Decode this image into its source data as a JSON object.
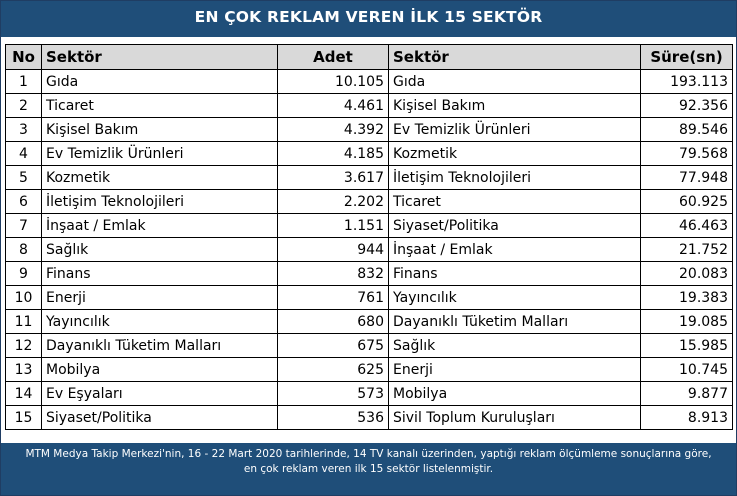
{
  "title": "EN ÇOK REKLAM VEREN İLK 15 SEKTÖR",
  "headers": {
    "no": "No",
    "sektor_left": "Sektör",
    "adet": "Adet",
    "sektor_right": "Sektör",
    "sure": "Süre(sn)"
  },
  "rows": [
    {
      "no": "1",
      "sektor_adet": "Gıda",
      "adet": "10.105",
      "sektor_sure": "Gıda",
      "sure": "193.113"
    },
    {
      "no": "2",
      "sektor_adet": "Ticaret",
      "adet": "4.461",
      "sektor_sure": "Kişisel Bakım",
      "sure": "92.356"
    },
    {
      "no": "3",
      "sektor_adet": "Kişisel Bakım",
      "adet": "4.392",
      "sektor_sure": "Ev Temizlik Ürünleri",
      "sure": "89.546"
    },
    {
      "no": "4",
      "sektor_adet": "Ev Temizlik Ürünleri",
      "adet": "4.185",
      "sektor_sure": "Kozmetik",
      "sure": "79.568"
    },
    {
      "no": "5",
      "sektor_adet": "Kozmetik",
      "adet": "3.617",
      "sektor_sure": "İletişim Teknolojileri",
      "sure": "77.948"
    },
    {
      "no": "6",
      "sektor_adet": "İletişim Teknolojileri",
      "adet": "2.202",
      "sektor_sure": "Ticaret",
      "sure": "60.925"
    },
    {
      "no": "7",
      "sektor_adet": "İnşaat / Emlak",
      "adet": "1.151",
      "sektor_sure": "Siyaset/Politika",
      "sure": "46.463"
    },
    {
      "no": "8",
      "sektor_adet": "Sağlık",
      "adet": "944",
      "sektor_sure": "İnşaat / Emlak",
      "sure": "21.752"
    },
    {
      "no": "9",
      "sektor_adet": "Finans",
      "adet": "832",
      "sektor_sure": "Finans",
      "sure": "20.083"
    },
    {
      "no": "10",
      "sektor_adet": "Enerji",
      "adet": "761",
      "sektor_sure": "Yayıncılık",
      "sure": "19.383"
    },
    {
      "no": "11",
      "sektor_adet": "Yayıncılık",
      "adet": "680",
      "sektor_sure": "Dayanıklı Tüketim Malları",
      "sure": "19.085"
    },
    {
      "no": "12",
      "sektor_adet": "Dayanıklı Tüketim Malları",
      "adet": "675",
      "sektor_sure": "Sağlık",
      "sure": "15.985"
    },
    {
      "no": "13",
      "sektor_adet": "Mobilya",
      "adet": "625",
      "sektor_sure": "Enerji",
      "sure": "10.745"
    },
    {
      "no": "14",
      "sektor_adet": "Ev Eşyaları",
      "adet": "573",
      "sektor_sure": "Mobilya",
      "sure": "9.877"
    },
    {
      "no": "15",
      "sektor_adet": "Siyaset/Politika",
      "adet": "536",
      "sektor_sure": "Sivil Toplum Kuruluşları",
      "sure": "8.913"
    }
  ],
  "footer": {
    "line1": "MTM Medya Takip Merkezi'nin, 16 - 22 Mart 2020 tarihlerinde, 14 TV kanalı üzerinden,  yaptığı reklam ölçümleme sonuçlarına göre,",
    "line2": "en çok reklam veren ilk 15 sektör  listelenmiştir."
  },
  "colors": {
    "title_background": "#1f4e79",
    "header_background": "#d9d9d9",
    "text_on_dark": "#ffffff"
  }
}
